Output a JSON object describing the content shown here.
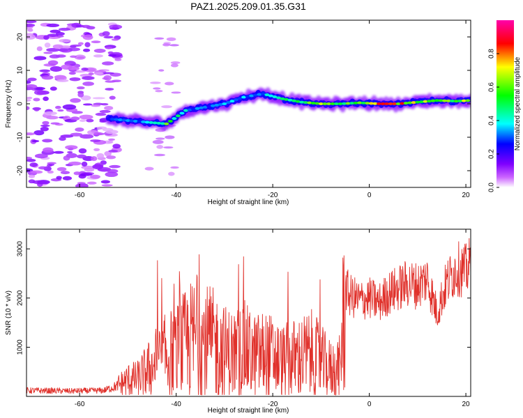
{
  "title": "PAZ1.2025.209.01.35.G31",
  "chart_data": [
    {
      "type": "heatmap",
      "title": "PAZ1.2025.209.01.35.G31",
      "xlabel": "Height of straight line (km)",
      "ylabel": "Frequency (Hz)",
      "xlim": [
        -71,
        21
      ],
      "ylim": [
        -25,
        25
      ],
      "xticks": [
        -60,
        -40,
        -20,
        0,
        20
      ],
      "yticks": [
        -20,
        -10,
        0,
        10,
        20
      ],
      "colorbar": {
        "label": "Normalized spectral amplitude",
        "range": [
          0,
          1
        ],
        "ticks": [
          0.0,
          0.2,
          0.4,
          0.6,
          0.8
        ],
        "colormap": [
          "#ffffff",
          "#cc66ff",
          "#7f00ff",
          "#0000ff",
          "#00ffff",
          "#00ff00",
          "#ffff00",
          "#ff0000",
          "#ff00aa"
        ]
      },
      "ridge": {
        "x": [
          -54,
          -50,
          -46,
          -42,
          -38,
          -34,
          -30,
          -26,
          -22,
          -18,
          -14,
          -10,
          -6,
          -2,
          2,
          6,
          10,
          14,
          18,
          21
        ],
        "frequency": [
          -4.5,
          -5,
          -5.5,
          -6,
          -2,
          -1,
          0,
          2,
          3,
          1.5,
          0.5,
          0,
          0,
          0.3,
          0,
          0,
          0.5,
          1,
          0.8,
          1
        ],
        "amplitude": [
          0.25,
          0.35,
          0.35,
          0.6,
          0.4,
          0.3,
          0.35,
          0.35,
          0.35,
          0.5,
          0.5,
          0.75,
          0.6,
          0.6,
          0.85,
          0.8,
          0.7,
          0.7,
          0.6,
          0.7
        ]
      },
      "noise_region": {
        "x_range": [
          -71,
          -52
        ],
        "frequency_range": [
          -25,
          25
        ],
        "amplitude": 0.1
      },
      "grid": false,
      "legend": "colorbar-right"
    },
    {
      "type": "line",
      "title": "",
      "xlabel": "Height of straight line (km)",
      "ylabel": "SNR (10 * v/v)",
      "xlim": [
        -71,
        21
      ],
      "ylim": [
        0,
        3400
      ],
      "xticks": [
        -60,
        -40,
        -20,
        0,
        20
      ],
      "yticks": [
        1000,
        2000,
        3000
      ],
      "series": [
        {
          "color": "#e0302a",
          "x": [
            -71,
            -66,
            -62,
            -58,
            -55,
            -52,
            -50,
            -48,
            -46,
            -44,
            -42,
            -40,
            -38,
            -36,
            -34,
            -32,
            -30,
            -28,
            -26,
            -24,
            -22,
            -20,
            -18,
            -16,
            -14,
            -12,
            -10,
            -8,
            -6,
            -5,
            -4,
            -2,
            0,
            2,
            4,
            6,
            8,
            10,
            12,
            14,
            16,
            18,
            20,
            21
          ],
          "values": [
            120,
            115,
            110,
            115,
            120,
            220,
            330,
            350,
            520,
            700,
            820,
            900,
            1050,
            1200,
            1100,
            1050,
            900,
            850,
            950,
            800,
            850,
            800,
            700,
            750,
            800,
            850,
            700,
            550,
            600,
            2200,
            2050,
            1950,
            2000,
            1900,
            2100,
            2200,
            2300,
            2250,
            2400,
            1700,
            2300,
            2600,
            2550,
            2700
          ]
        }
      ],
      "grid": false,
      "legend": "none"
    }
  ]
}
